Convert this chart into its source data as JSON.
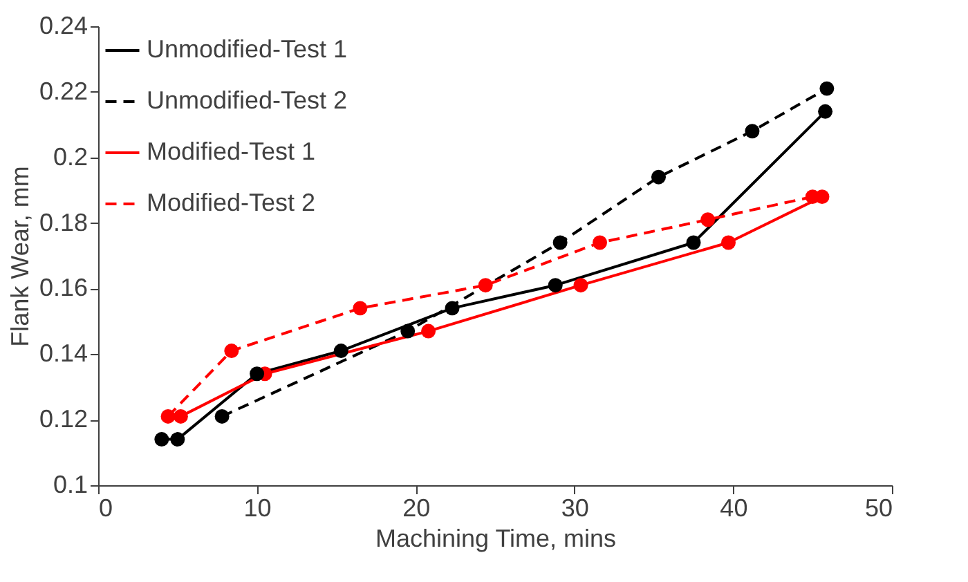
{
  "chart_data": {
    "type": "line",
    "xlabel": "Machining Time, mins",
    "ylabel": "Flank Wear, mm",
    "xlim": [
      0,
      50
    ],
    "xticks": [
      0,
      10,
      20,
      30,
      40,
      50
    ],
    "ylim": [
      0.1,
      0.24
    ],
    "yticks": [
      0.1,
      0.12,
      0.14,
      0.16,
      0.18,
      0.2,
      0.22,
      0.24
    ],
    "grid": false,
    "legend": "top left",
    "marker": "circle",
    "series": [
      {
        "name": "Unmodified-Test 1",
        "color": "#000000",
        "line_style": "solid",
        "x": [
          4.0,
          5.0,
          10.0,
          15.3,
          22.3,
          28.8,
          37.5,
          45.8
        ],
        "values": [
          0.114,
          0.114,
          0.134,
          0.141,
          0.154,
          0.161,
          0.174,
          0.214
        ]
      },
      {
        "name": "Unmodified-Test 2",
        "color": "#000000",
        "line_style": "dashed",
        "x": [
          7.8,
          19.5,
          29.1,
          35.3,
          41.2,
          45.9
        ],
        "values": [
          0.121,
          0.147,
          0.174,
          0.194,
          0.208,
          0.221
        ]
      },
      {
        "name": "Modified-Test 1",
        "color": "#ff0000",
        "line_style": "solid",
        "x": [
          5.2,
          10.5,
          20.8,
          30.4,
          39.7,
          45.6
        ],
        "values": [
          0.121,
          0.134,
          0.147,
          0.161,
          0.174,
          0.188
        ]
      },
      {
        "name": "Modified-Test 2",
        "color": "#ff0000",
        "line_style": "dashed",
        "x": [
          4.4,
          8.4,
          16.5,
          24.4,
          31.6,
          38.4,
          45.0
        ],
        "values": [
          0.121,
          0.141,
          0.154,
          0.161,
          0.174,
          0.181,
          0.188
        ]
      }
    ]
  }
}
